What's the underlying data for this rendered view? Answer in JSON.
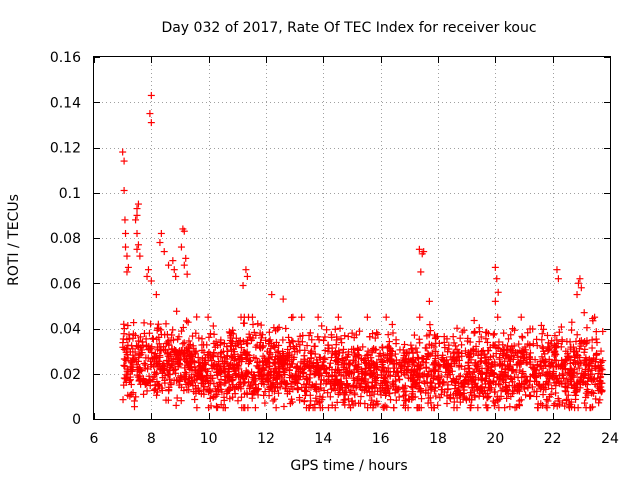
{
  "chart_data": {
    "type": "scatter",
    "title": "Day 032 of 2017, Rate Of TEC Index for receiver kouc",
    "xlabel": "GPS time / hours",
    "ylabel": "ROTI / TECUs",
    "xlim": [
      6,
      24
    ],
    "ylim": [
      0,
      0.16
    ],
    "xticks": [
      6,
      8,
      10,
      12,
      14,
      16,
      18,
      20,
      22,
      24
    ],
    "yticks": [
      0,
      0.02,
      0.04,
      0.06,
      0.08,
      0.1,
      0.12,
      0.14,
      0.16
    ],
    "xtick_labels": [
      "6",
      "8",
      "10",
      "12",
      "14",
      "16",
      "18",
      "20",
      "22",
      "24"
    ],
    "ytick_labels": [
      "0",
      "0.02",
      "0.04",
      "0.06",
      "0.08",
      "0.1",
      "0.12",
      "0.14",
      "0.16"
    ],
    "grid": true,
    "marker": "+",
    "color": "#ff0000",
    "dense_band": {
      "x_range": [
        7.0,
        23.75
      ],
      "y_median": 0.02,
      "y_range": [
        0.005,
        0.045
      ]
    },
    "series": [
      {
        "name": "ROTI",
        "points": [
          [
            7.0,
            0.118
          ],
          [
            7.05,
            0.114
          ],
          [
            7.05,
            0.101
          ],
          [
            7.08,
            0.088
          ],
          [
            7.1,
            0.082
          ],
          [
            7.1,
            0.076
          ],
          [
            7.15,
            0.072
          ],
          [
            7.2,
            0.067
          ],
          [
            7.15,
            0.065
          ],
          [
            7.5,
            0.093
          ],
          [
            7.5,
            0.09
          ],
          [
            7.45,
            0.088
          ],
          [
            7.55,
            0.095
          ],
          [
            7.5,
            0.082
          ],
          [
            7.55,
            0.077
          ],
          [
            7.5,
            0.075
          ],
          [
            7.6,
            0.072
          ],
          [
            8.0,
            0.143
          ],
          [
            7.95,
            0.135
          ],
          [
            8.0,
            0.131
          ],
          [
            7.9,
            0.066
          ],
          [
            7.85,
            0.063
          ],
          [
            8.0,
            0.061
          ],
          [
            8.35,
            0.082
          ],
          [
            8.3,
            0.078
          ],
          [
            8.45,
            0.074
          ],
          [
            8.6,
            0.068
          ],
          [
            8.75,
            0.07
          ],
          [
            8.8,
            0.066
          ],
          [
            8.85,
            0.063
          ],
          [
            9.1,
            0.084
          ],
          [
            9.15,
            0.083
          ],
          [
            9.05,
            0.076
          ],
          [
            9.2,
            0.071
          ],
          [
            9.15,
            0.068
          ],
          [
            9.25,
            0.064
          ],
          [
            11.3,
            0.066
          ],
          [
            11.35,
            0.063
          ],
          [
            11.2,
            0.059
          ],
          [
            12.2,
            0.055
          ],
          [
            12.6,
            0.053
          ],
          [
            17.35,
            0.075
          ],
          [
            17.45,
            0.073
          ],
          [
            17.5,
            0.074
          ],
          [
            17.4,
            0.065
          ],
          [
            17.7,
            0.052
          ],
          [
            20.0,
            0.067
          ],
          [
            20.05,
            0.062
          ],
          [
            20.1,
            0.056
          ],
          [
            20.0,
            0.052
          ],
          [
            22.15,
            0.066
          ],
          [
            22.2,
            0.062
          ],
          [
            22.95,
            0.062
          ],
          [
            22.9,
            0.06
          ],
          [
            23.0,
            0.058
          ],
          [
            22.85,
            0.055
          ],
          [
            23.1,
            0.047
          ]
        ]
      }
    ]
  }
}
